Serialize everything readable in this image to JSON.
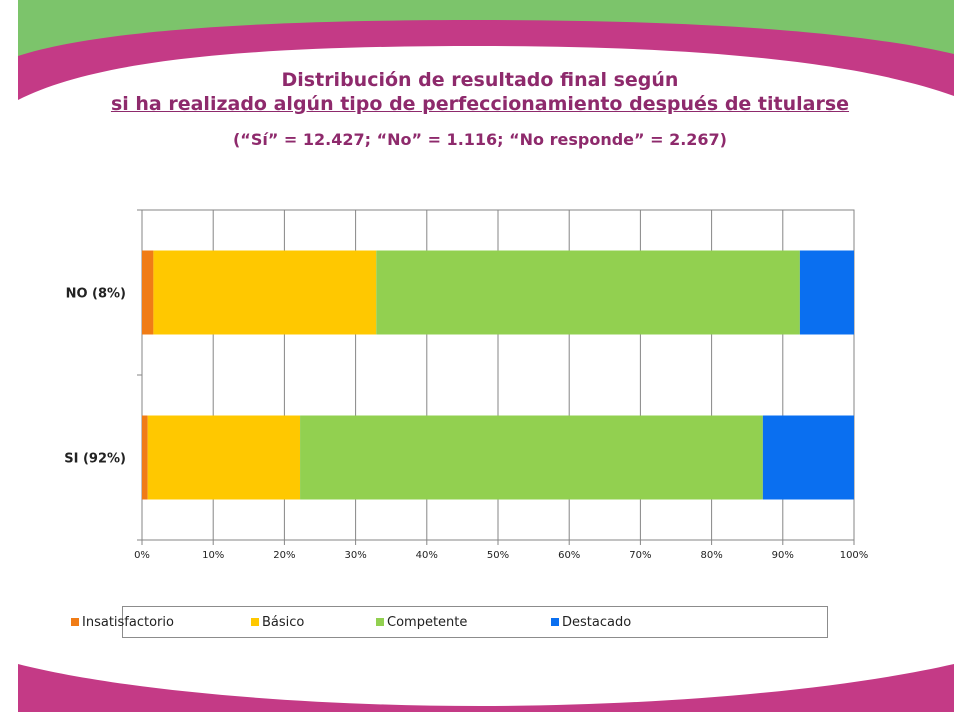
{
  "header": {
    "title_line1": "Distribución de resultado final según",
    "title_line2": "si ha realizado algún tipo de perfeccionamiento después de titularse",
    "subtitle": "(“Sí” = 12.427; “No” = 1.116; “No responde” = 2.267)"
  },
  "colors": {
    "band_green": "#7cc46b",
    "band_magenta": "#c43a86",
    "title": "#8e2a6c",
    "grid": "#868686"
  },
  "chart_data": {
    "type": "bar",
    "orientation": "horizontal",
    "stacked": "percent",
    "title": "",
    "xlabel": "",
    "ylabel": "",
    "categories": [
      "NO (8%)",
      "SI (92%)"
    ],
    "series": [
      {
        "name": "Insatisfactorio",
        "color": "#f07c16",
        "values": [
          1.6,
          0.8
        ]
      },
      {
        "name": "Básico",
        "color": "#ffc800",
        "values": [
          31.3,
          21.4
        ]
      },
      {
        "name": "Competente",
        "color": "#92d050",
        "values": [
          59.5,
          65.0
        ]
      },
      {
        "name": "Destacado",
        "color": "#0a6ff0",
        "values": [
          7.6,
          12.8
        ]
      }
    ],
    "xticks": [
      "0%",
      "10%",
      "20%",
      "30%",
      "40%",
      "50%",
      "60%",
      "70%",
      "80%",
      "90%",
      "100%"
    ],
    "xlim": [
      0,
      100
    ],
    "grid": true,
    "legend_position": "bottom"
  }
}
